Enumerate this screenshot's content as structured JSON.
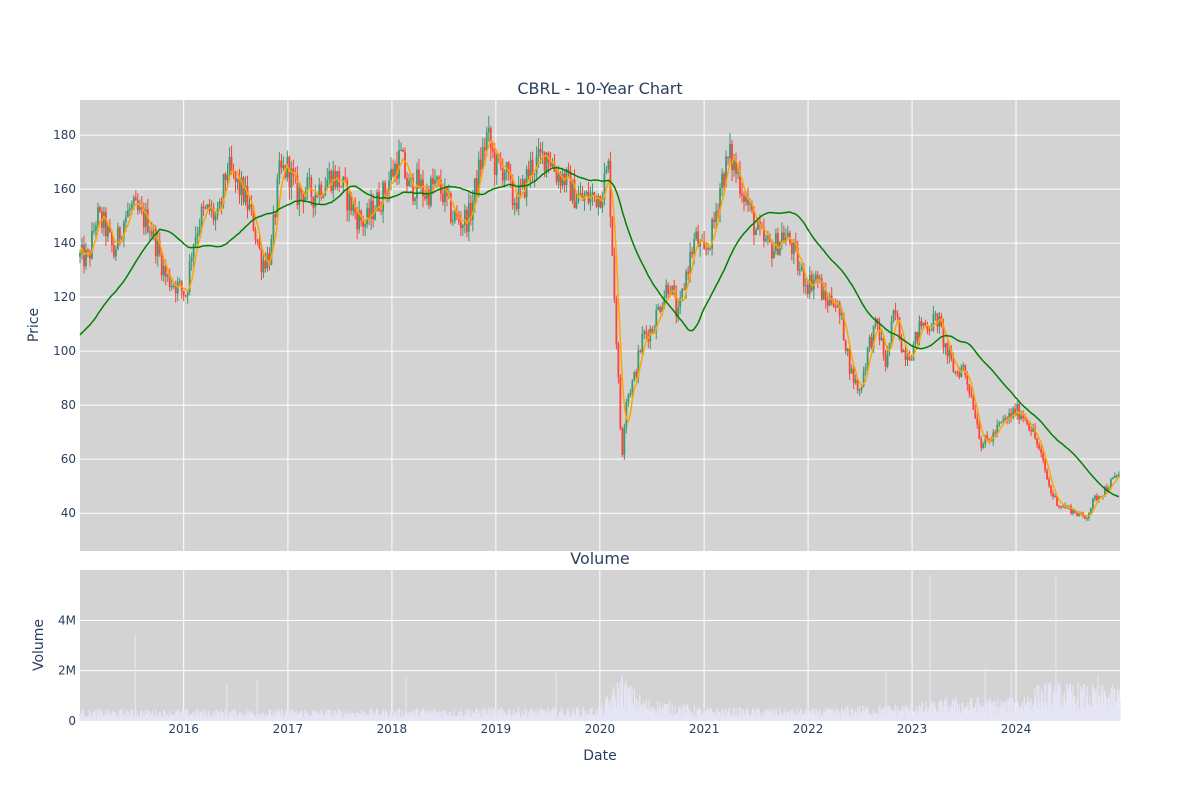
{
  "chart_data": [
    {
      "type": "candlestick",
      "title": "CBRL - 10-Year Chart",
      "ylabel": "Price",
      "ylim": [
        26,
        193
      ],
      "yticks": [
        40,
        60,
        80,
        100,
        120,
        140,
        160,
        180
      ],
      "xlim": [
        "2015-01-02",
        "2024-12-31"
      ],
      "grid": true,
      "overlays": [
        {
          "color": "#ffa500",
          "kind": "short moving average"
        },
        {
          "color": "#008000",
          "kind": "long moving average"
        }
      ],
      "candle_colors": {
        "up": "#3d9970",
        "down": "#ff4136"
      },
      "price_path": [
        [
          "2015-01-02",
          135
        ],
        [
          "2015-02-01",
          134
        ],
        [
          "2015-03-01",
          150
        ],
        [
          "2015-04-01",
          146
        ],
        [
          "2015-05-01",
          136
        ],
        [
          "2015-06-01",
          148
        ],
        [
          "2015-07-01",
          153
        ],
        [
          "2015-08-01",
          150
        ],
        [
          "2015-09-01",
          148
        ],
        [
          "2015-10-01",
          138
        ],
        [
          "2015-11-01",
          127
        ],
        [
          "2015-12-01",
          125
        ],
        [
          "2016-01-10",
          121
        ],
        [
          "2016-02-01",
          140
        ],
        [
          "2016-03-01",
          150
        ],
        [
          "2016-04-01",
          152
        ],
        [
          "2016-05-01",
          148
        ],
        [
          "2016-06-01",
          168
        ],
        [
          "2016-07-01",
          162
        ],
        [
          "2016-08-01",
          158
        ],
        [
          "2016-09-01",
          148
        ],
        [
          "2016-10-01",
          133
        ],
        [
          "2016-11-01",
          136
        ],
        [
          "2016-12-01",
          165
        ],
        [
          "2017-01-01",
          168
        ],
        [
          "2017-02-01",
          158
        ],
        [
          "2017-03-01",
          160
        ],
        [
          "2017-04-01",
          158
        ],
        [
          "2017-05-01",
          162
        ],
        [
          "2017-06-01",
          165
        ],
        [
          "2017-07-01",
          163
        ],
        [
          "2017-08-01",
          156
        ],
        [
          "2017-09-01",
          150
        ],
        [
          "2017-10-01",
          147
        ],
        [
          "2017-11-01",
          154
        ],
        [
          "2017-12-01",
          158
        ],
        [
          "2018-01-01",
          166
        ],
        [
          "2018-02-01",
          172
        ],
        [
          "2018-03-01",
          160
        ],
        [
          "2018-04-01",
          162
        ],
        [
          "2018-05-01",
          158
        ],
        [
          "2018-06-01",
          162
        ],
        [
          "2018-07-01",
          158
        ],
        [
          "2018-08-01",
          150
        ],
        [
          "2018-09-01",
          148
        ],
        [
          "2018-10-01",
          150
        ],
        [
          "2018-11-01",
          166
        ],
        [
          "2018-12-01",
          180
        ],
        [
          "2019-01-01",
          168
        ],
        [
          "2019-02-01",
          168
        ],
        [
          "2019-03-01",
          156
        ],
        [
          "2019-04-01",
          158
        ],
        [
          "2019-05-01",
          168
        ],
        [
          "2019-06-01",
          170
        ],
        [
          "2019-07-01",
          174
        ],
        [
          "2019-08-01",
          166
        ],
        [
          "2019-09-01",
          164
        ],
        [
          "2019-10-01",
          158
        ],
        [
          "2019-11-01",
          156
        ],
        [
          "2019-12-01",
          157
        ],
        [
          "2020-01-01",
          158
        ],
        [
          "2020-02-01",
          168
        ],
        [
          "2020-03-01",
          100
        ],
        [
          "2020-03-18",
          60
        ],
        [
          "2020-04-01",
          82
        ],
        [
          "2020-05-01",
          90
        ],
        [
          "2020-06-01",
          106
        ],
        [
          "2020-07-01",
          108
        ],
        [
          "2020-08-01",
          118
        ],
        [
          "2020-09-01",
          126
        ],
        [
          "2020-10-01",
          112
        ],
        [
          "2020-11-01",
          130
        ],
        [
          "2020-12-01",
          142
        ],
        [
          "2021-01-01",
          135
        ],
        [
          "2021-02-01",
          145
        ],
        [
          "2021-03-01",
          163
        ],
        [
          "2021-04-01",
          172
        ],
        [
          "2021-05-01",
          165
        ],
        [
          "2021-06-01",
          155
        ],
        [
          "2021-07-01",
          145
        ],
        [
          "2021-08-01",
          140
        ],
        [
          "2021-09-01",
          138
        ],
        [
          "2021-10-01",
          143
        ],
        [
          "2021-11-01",
          140
        ],
        [
          "2021-12-01",
          130
        ],
        [
          "2022-01-01",
          125
        ],
        [
          "2022-02-01",
          128
        ],
        [
          "2022-03-01",
          118
        ],
        [
          "2022-04-01",
          120
        ],
        [
          "2022-05-01",
          110
        ],
        [
          "2022-06-01",
          92
        ],
        [
          "2022-07-01",
          85
        ],
        [
          "2022-08-01",
          102
        ],
        [
          "2022-09-01",
          110
        ],
        [
          "2022-10-01",
          95
        ],
        [
          "2022-11-01",
          115
        ],
        [
          "2022-12-01",
          100
        ],
        [
          "2023-01-01",
          100
        ],
        [
          "2023-02-01",
          110
        ],
        [
          "2023-03-01",
          110
        ],
        [
          "2023-04-01",
          112
        ],
        [
          "2023-05-01",
          100
        ],
        [
          "2023-06-01",
          92
        ],
        [
          "2023-07-01",
          94
        ],
        [
          "2023-08-01",
          82
        ],
        [
          "2023-09-01",
          66
        ],
        [
          "2023-10-01",
          67
        ],
        [
          "2023-11-01",
          72
        ],
        [
          "2023-12-01",
          75
        ],
        [
          "2024-01-01",
          78
        ],
        [
          "2024-02-01",
          76
        ],
        [
          "2024-03-01",
          70
        ],
        [
          "2024-04-01",
          60
        ],
        [
          "2024-05-01",
          48
        ],
        [
          "2024-06-01",
          43
        ],
        [
          "2024-07-01",
          42
        ],
        [
          "2024-08-01",
          40
        ],
        [
          "2024-09-01",
          38
        ],
        [
          "2024-10-01",
          45
        ],
        [
          "2024-11-01",
          48
        ],
        [
          "2024-12-31",
          55
        ]
      ]
    },
    {
      "type": "bar",
      "title": "Volume",
      "ylabel": "Volume",
      "xlabel": "Date",
      "ylim": [
        0,
        6000000
      ],
      "yticks": [
        {
          "v": 0,
          "label": "0"
        },
        {
          "v": 2000000,
          "label": "2M"
        },
        {
          "v": 4000000,
          "label": "4M"
        }
      ],
      "xticks": [
        {
          "date": "2016-01-01",
          "label": "2016"
        },
        {
          "date": "2017-01-01",
          "label": "2017"
        },
        {
          "date": "2018-01-01",
          "label": "2018"
        },
        {
          "date": "2019-01-01",
          "label": "2019"
        },
        {
          "date": "2020-01-01",
          "label": "2020"
        },
        {
          "date": "2021-01-01",
          "label": "2021"
        },
        {
          "date": "2022-01-01",
          "label": "2022"
        },
        {
          "date": "2023-01-01",
          "label": "2023"
        },
        {
          "date": "2024-01-01",
          "label": "2024"
        }
      ],
      "bar_color": "#e5e5f5",
      "typical_volume": [
        [
          "2015-01-01",
          300000
        ],
        [
          "2016-01-01",
          300000
        ],
        [
          "2017-01-01",
          300000
        ],
        [
          "2018-01-01",
          320000
        ],
        [
          "2019-01-01",
          350000
        ],
        [
          "2020-01-01",
          350000
        ],
        [
          "2020-03-15",
          1200000
        ],
        [
          "2020-06-01",
          600000
        ],
        [
          "2021-01-01",
          350000
        ],
        [
          "2022-01-01",
          320000
        ],
        [
          "2023-01-01",
          450000
        ],
        [
          "2023-06-01",
          600000
        ],
        [
          "2024-01-01",
          600000
        ],
        [
          "2024-04-01",
          1000000
        ],
        [
          "2024-12-31",
          900000
        ]
      ],
      "volume_spikes": [
        [
          "2015-07-15",
          3400000
        ],
        [
          "2016-06-01",
          1500000
        ],
        [
          "2016-09-15",
          1600000
        ],
        [
          "2018-02-20",
          1700000
        ],
        [
          "2019-08-01",
          1900000
        ],
        [
          "2020-03-20",
          1800000
        ],
        [
          "2022-10-01",
          1900000
        ],
        [
          "2023-03-05",
          5800000
        ],
        [
          "2023-09-15",
          2100000
        ],
        [
          "2023-12-15",
          2000000
        ],
        [
          "2024-05-20",
          5700000
        ],
        [
          "2024-10-15",
          1800000
        ]
      ]
    }
  ],
  "colors": {
    "panel_bg": "#d3d3d3",
    "grid": "#ffffff",
    "text": "#2a3f5f"
  }
}
